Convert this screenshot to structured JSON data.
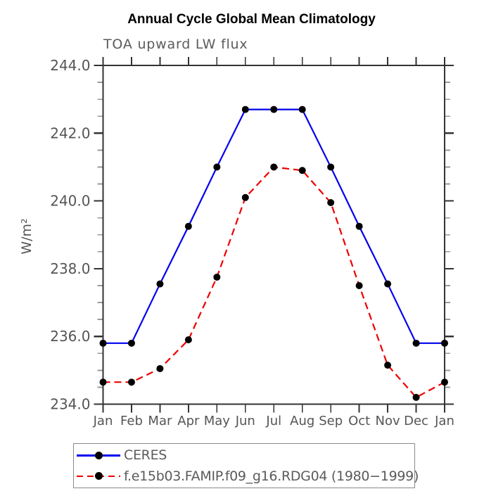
{
  "title": "Annual Cycle Global Mean Climatology",
  "chart_data": {
    "type": "line",
    "subtitle": "TOA upward LW flux",
    "ylabel": "W/m²",
    "categories": [
      "Jan",
      "Feb",
      "Mar",
      "Apr",
      "May",
      "Jun",
      "Jul",
      "Aug",
      "Sep",
      "Oct",
      "Nov",
      "Dec",
      "Jan"
    ],
    "ylim": [
      234.0,
      244.0
    ],
    "y_major_step": 2,
    "y_minor_step": 0.5,
    "y_tick_labels": [
      "234.0",
      "236.0",
      "238.0",
      "240.0",
      "242.0",
      "244.0"
    ],
    "grid": false,
    "legend_position": "bottom-left",
    "series": [
      {
        "name": "CERES",
        "color": "#0000ee",
        "line_style": "solid",
        "marker": "circle",
        "marker_color": "#000000",
        "values": [
          235.8,
          235.8,
          237.55,
          239.25,
          241.0,
          242.7,
          242.7,
          242.7,
          241.0,
          239.25,
          237.55,
          235.8,
          235.8
        ]
      },
      {
        "name": "f.e15b03.FAMIP.f09_g16.RDG04 (1980−1999)",
        "color": "#ee0000",
        "line_style": "dashed",
        "marker": "circle",
        "marker_color": "#000000",
        "values": [
          234.65,
          234.65,
          235.05,
          235.9,
          237.75,
          240.1,
          241.0,
          240.9,
          239.95,
          237.5,
          235.15,
          234.2,
          234.65
        ]
      }
    ]
  }
}
